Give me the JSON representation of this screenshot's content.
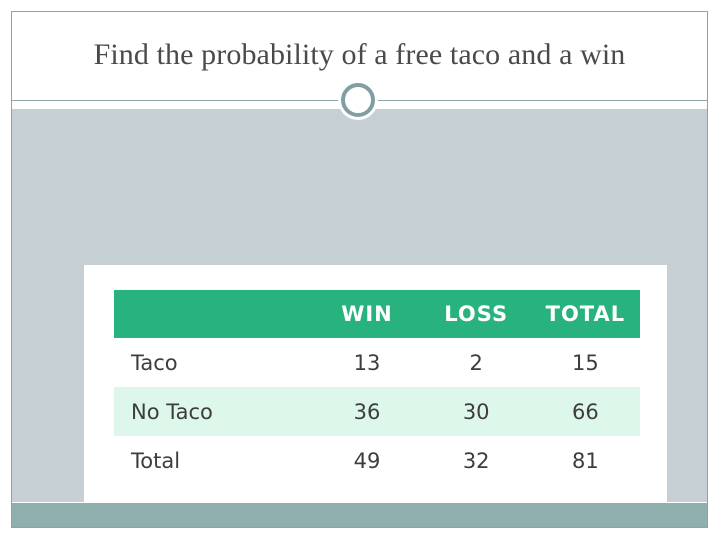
{
  "slide": {
    "title": "Find the probability of a free taco and a win"
  },
  "table": {
    "headers": [
      "",
      "WIN",
      "LOSS",
      "TOTAL"
    ],
    "rows": [
      {
        "label": "Taco",
        "values": [
          "13",
          "2",
          "15"
        ]
      },
      {
        "label": "No Taco",
        "values": [
          "36",
          "30",
          "66"
        ]
      },
      {
        "label": "Total",
        "values": [
          "49",
          "32",
          "81"
        ]
      }
    ]
  },
  "colors": {
    "header_background": "#28b37e",
    "highlight_row": "#ddf7ea",
    "content_background": "#c6d0d4",
    "footer_bar": "#8faeae",
    "frame_border": "#8fa3a6"
  }
}
